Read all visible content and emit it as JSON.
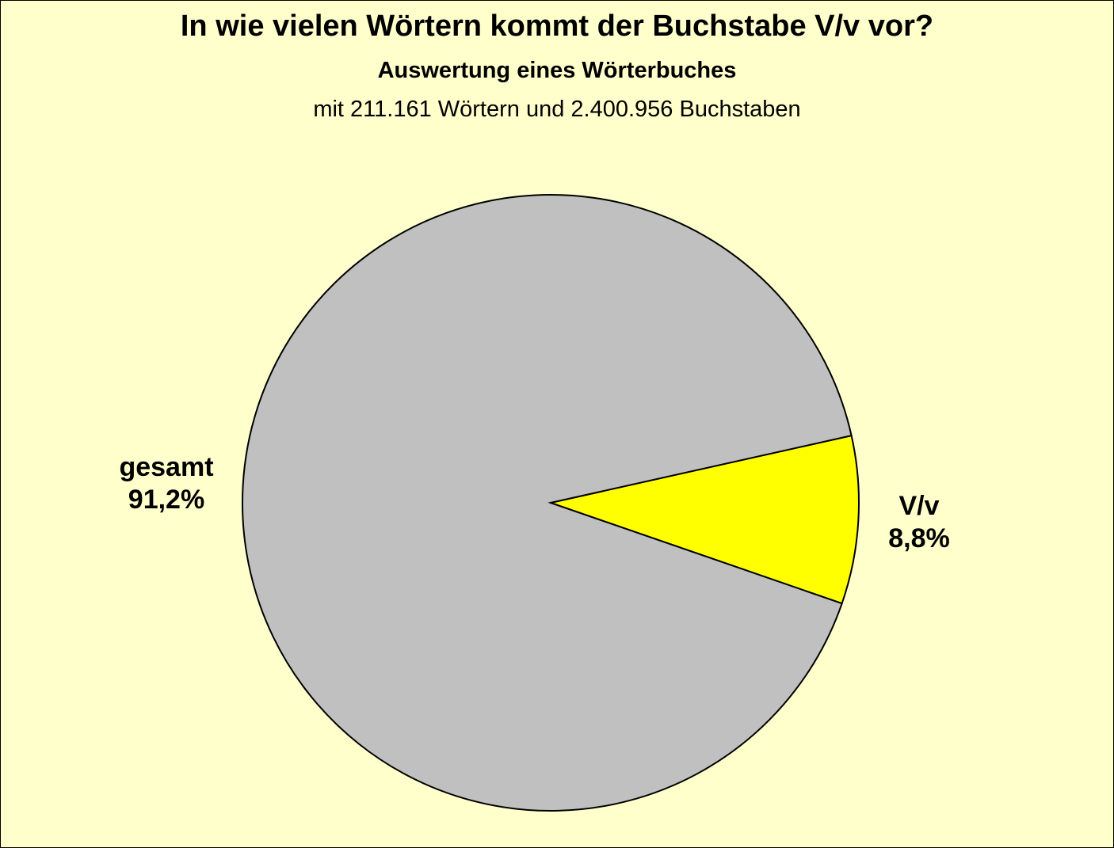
{
  "chart_data": {
    "type": "pie",
    "title": "In wie vielen Wörtern kommt der Buchstabe V/v vor?",
    "subtitle": "Auswertung eines Wörterbuches",
    "subtitle2": "mit 211.161 Wörtern und 2.400.956 Buchstaben",
    "slices": [
      {
        "name": "V/v",
        "value": 8.8,
        "label": "8,8%",
        "color": "#FFFF00"
      },
      {
        "name": "gesamt",
        "value": 91.2,
        "label": "91,2%",
        "color": "#C0C0C0"
      }
    ],
    "background": "#FFFFCC"
  }
}
